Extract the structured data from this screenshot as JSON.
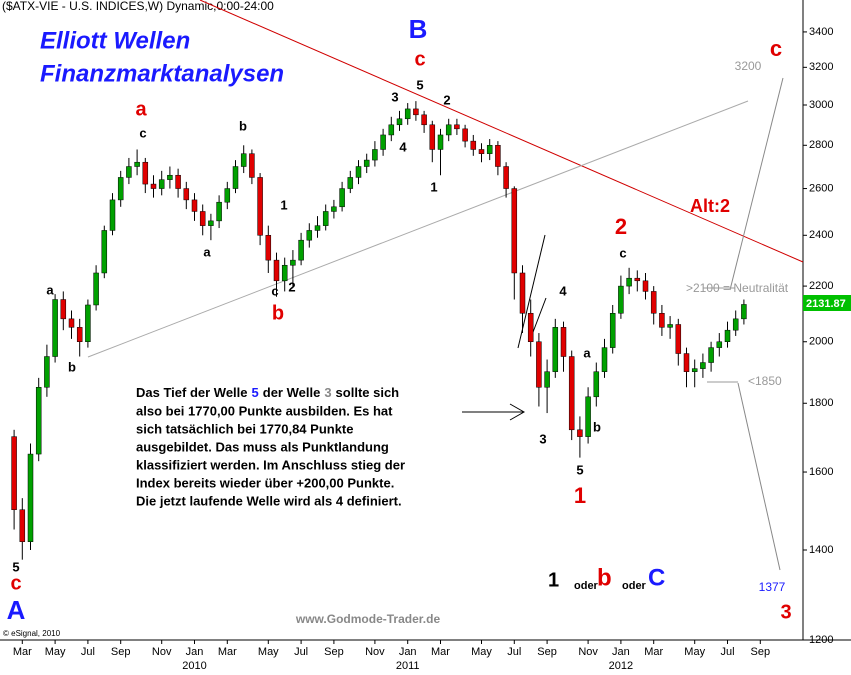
{
  "chart_data": {
    "type": "candlestick",
    "title": "($ATX-VIE - U.S. INDICES,W) Dynamic,0:00-24:00",
    "log_scale": true,
    "ylim": [
      1200,
      3500
    ],
    "yticks": [
      1200,
      1400,
      1600,
      1800,
      2000,
      2200,
      2400,
      2600,
      2800,
      3000,
      3200,
      3400
    ],
    "up_color": "#00a000",
    "down_color": "#e00000",
    "categories": [
      null,
      "Mar",
      null,
      null,
      null,
      "May",
      null,
      null,
      null,
      "Jul",
      null,
      null,
      null,
      "Sep",
      null,
      null,
      null,
      null,
      "Nov",
      null,
      null,
      null,
      "Jan",
      null,
      null,
      null,
      "Mar",
      null,
      null,
      null,
      null,
      "May",
      null,
      null,
      null,
      "Jul",
      null,
      null,
      null,
      "Sep",
      null,
      null,
      null,
      null,
      "Nov",
      null,
      null,
      null,
      "Jan",
      null,
      null,
      null,
      "Mar",
      null,
      null,
      null,
      null,
      "May",
      null,
      null,
      null,
      "Jul",
      null,
      null,
      null,
      "Sep",
      null,
      null,
      null,
      null,
      "Nov",
      null,
      null,
      null,
      "Jan",
      null,
      null,
      null,
      "Mar",
      null,
      null,
      null,
      null,
      "May",
      null,
      null,
      null,
      "Jul",
      null,
      null,
      null,
      "Sep"
    ],
    "year_labels": [
      null,
      null,
      null,
      null,
      null,
      null,
      null,
      null,
      null,
      null,
      null,
      null,
      null,
      null,
      null,
      null,
      null,
      null,
      null,
      null,
      null,
      null,
      "2010",
      null,
      null,
      null,
      null,
      null,
      null,
      null,
      null,
      null,
      null,
      null,
      null,
      null,
      null,
      null,
      null,
      null,
      null,
      null,
      null,
      null,
      null,
      null,
      null,
      null,
      "2011",
      null,
      null,
      null,
      null,
      null,
      null,
      null,
      null,
      null,
      null,
      null,
      null,
      null,
      null,
      null,
      null,
      null,
      null,
      null,
      null,
      null,
      null,
      null,
      null,
      null,
      "2012",
      null,
      null,
      null,
      null,
      null,
      null,
      null,
      null,
      null,
      null,
      null,
      null,
      null,
      null,
      null,
      null,
      null
    ],
    "open": [
      1700,
      1500,
      1420,
      1650,
      1850,
      1950,
      2150,
      2080,
      2050,
      2000,
      2130,
      2250,
      2420,
      2550,
      2650,
      2700,
      2720,
      2620,
      2600,
      2640,
      2660,
      2600,
      2550,
      2500,
      2440,
      2460,
      2540,
      2600,
      2700,
      2760,
      2650,
      2400,
      2300,
      2220,
      2280,
      2300,
      2380,
      2420,
      2440,
      2500,
      2520,
      2600,
      2650,
      2700,
      2730,
      2780,
      2850,
      2900,
      2930,
      2980,
      2950,
      2900,
      2780,
      2850,
      2900,
      2880,
      2820,
      2780,
      2760,
      2800,
      2700,
      2600,
      2250,
      2100,
      2000,
      1850,
      1900,
      2050,
      1950,
      1720,
      1700,
      1820,
      1900,
      1980,
      2100,
      2200,
      2230,
      2220,
      2180,
      2100,
      2050,
      2060,
      1960,
      1900,
      1910,
      1930,
      1980,
      2000,
      2040,
      2080,
      null,
      null
    ],
    "high": [
      1720,
      1530,
      1680,
      1880,
      1990,
      2170,
      2180,
      2110,
      2080,
      2150,
      2280,
      2440,
      2580,
      2680,
      2740,
      2780,
      2740,
      2660,
      2680,
      2700,
      2690,
      2630,
      2580,
      2530,
      2490,
      2570,
      2630,
      2730,
      2800,
      2780,
      2670,
      2440,
      2330,
      2310,
      2340,
      2410,
      2450,
      2480,
      2530,
      2550,
      2630,
      2680,
      2730,
      2760,
      2820,
      2880,
      2940,
      2970,
      3010,
      3020,
      2970,
      2920,
      2880,
      2930,
      2930,
      2900,
      2850,
      2810,
      2830,
      2820,
      2720,
      2610,
      2280,
      2150,
      2030,
      1940,
      2080,
      2070,
      1970,
      1760,
      1850,
      1930,
      2010,
      2130,
      2240,
      2270,
      2260,
      2250,
      2200,
      2130,
      2090,
      2080,
      1980,
      1940,
      1960,
      2000,
      2030,
      2070,
      2110,
      2150,
      null,
      null
    ],
    "low": [
      1450,
      1377,
      1400,
      1630,
      1820,
      1930,
      2040,
      2010,
      1950,
      1980,
      2110,
      2230,
      2400,
      2520,
      2620,
      2660,
      2580,
      2560,
      2570,
      2600,
      2560,
      2510,
      2460,
      2400,
      2380,
      2430,
      2510,
      2580,
      2670,
      2620,
      2360,
      2250,
      2160,
      2180,
      2200,
      2280,
      2350,
      2390,
      2420,
      2470,
      2500,
      2580,
      2620,
      2670,
      2700,
      2750,
      2820,
      2870,
      2900,
      2920,
      2860,
      2720,
      2660,
      2820,
      2850,
      2790,
      2750,
      2720,
      2730,
      2660,
      2560,
      2150,
      2030,
      1950,
      1790,
      1770,
      1880,
      1900,
      1690,
      1640,
      1680,
      1790,
      1880,
      1960,
      2080,
      2170,
      2180,
      2150,
      2060,
      2020,
      2010,
      1920,
      1850,
      1850,
      1880,
      1900,
      1950,
      1980,
      2020,
      2060,
      null,
      null
    ],
    "close": [
      1500,
      1420,
      1650,
      1850,
      1950,
      2150,
      2080,
      2050,
      2000,
      2130,
      2250,
      2420,
      2550,
      2650,
      2700,
      2720,
      2620,
      2600,
      2640,
      2660,
      2600,
      2550,
      2500,
      2440,
      2460,
      2540,
      2600,
      2700,
      2760,
      2650,
      2400,
      2300,
      2220,
      2280,
      2300,
      2380,
      2420,
      2440,
      2500,
      2520,
      2600,
      2650,
      2700,
      2730,
      2780,
      2850,
      2900,
      2930,
      2980,
      2950,
      2900,
      2780,
      2850,
      2900,
      2880,
      2820,
      2780,
      2760,
      2800,
      2700,
      2600,
      2250,
      2100,
      2000,
      1850,
      1900,
      2050,
      1950,
      1720,
      1700,
      1820,
      1900,
      1980,
      2100,
      2200,
      2230,
      2220,
      2180,
      2100,
      2050,
      2060,
      1960,
      1900,
      1910,
      1930,
      1980,
      2000,
      2040,
      2080,
      2131.87,
      null,
      null
    ],
    "annotations": [
      {
        "text": "Elliott Wellen",
        "color": "#1a1aff"
      },
      {
        "text": "Finanzmarktanalysen",
        "color": "#1a1aff"
      },
      {
        "text": "B",
        "color": "#1a1aff"
      },
      {
        "text": "c",
        "color": "#e00000"
      },
      {
        "text": "5",
        "color": "#000000"
      },
      {
        "text": "c",
        "color": "#e00000"
      },
      {
        "text": "A",
        "color": "#1a1aff"
      },
      {
        "text": "a",
        "color": "#e00000"
      },
      {
        "text": "c",
        "color": "#000000"
      },
      {
        "text": "a",
        "color": "#000000"
      },
      {
        "text": "b",
        "color": "#000000"
      },
      {
        "text": "b",
        "color": "#000000"
      },
      {
        "text": "a",
        "color": "#000000"
      },
      {
        "text": "1",
        "color": "#000000"
      },
      {
        "text": "c",
        "color": "#000000"
      },
      {
        "text": "2",
        "color": "#000000"
      },
      {
        "text": "b",
        "color": "#e00000"
      },
      {
        "text": "3",
        "color": "#000000"
      },
      {
        "text": "5",
        "color": "#000000"
      },
      {
        "text": "2",
        "color": "#000000"
      },
      {
        "text": "4",
        "color": "#000000"
      },
      {
        "text": "1",
        "color": "#000000"
      },
      {
        "text": "4",
        "color": "#000000"
      },
      {
        "text": "a",
        "color": "#000000"
      },
      {
        "text": "3",
        "color": "#000000"
      },
      {
        "text": "b",
        "color": "#000000"
      },
      {
        "text": "5",
        "color": "#000000"
      },
      {
        "text": "1",
        "color": "#e00000"
      },
      {
        "text": "2",
        "color": "#e00000"
      },
      {
        "text": "c",
        "color": "#000000"
      },
      {
        "text": "Alt:2",
        "color": "#e00000"
      },
      {
        "text": "c",
        "color": "#e00000"
      },
      {
        "text": "3200",
        "color": "#999999"
      },
      {
        "text": ">2100 = Neutralität",
        "color": "#999999"
      },
      {
        "text": "<1850",
        "color": "#999999"
      },
      {
        "text": "1377",
        "color": "#1a1aff"
      },
      {
        "text": "3",
        "color": "#e00000"
      },
      {
        "text": "1",
        "color": "#000000"
      },
      {
        "text": "oder",
        "color": "#000000"
      },
      {
        "text": "b",
        "color": "#e00000"
      },
      {
        "text": "oder",
        "color": "#000000"
      },
      {
        "text": "C",
        "color": "#1a1aff"
      },
      {
        "text": "www.Godmode-Trader.de",
        "color": "#888888"
      },
      {
        "text": "© eSignal, 2010",
        "color": "#000000"
      }
    ],
    "text_box": {
      "first_line": [
        "Das Tief der Welle",
        "5",
        "der Welle",
        "3",
        "sollte sich"
      ],
      "lines": [
        "also bei 1770,00 Punkte ausbilden. Es hat",
        "sich tatsächlich bei 1770,84 Punkte",
        "ausgebildet. Das muss als Punktlandung",
        "klassifiziert werden. Im Anschluss stieg der",
        "Index bereits wieder über +200,00 Punkte.",
        "Die jetzt laufende Welle wird als 4 definiert."
      ]
    }
  }
}
